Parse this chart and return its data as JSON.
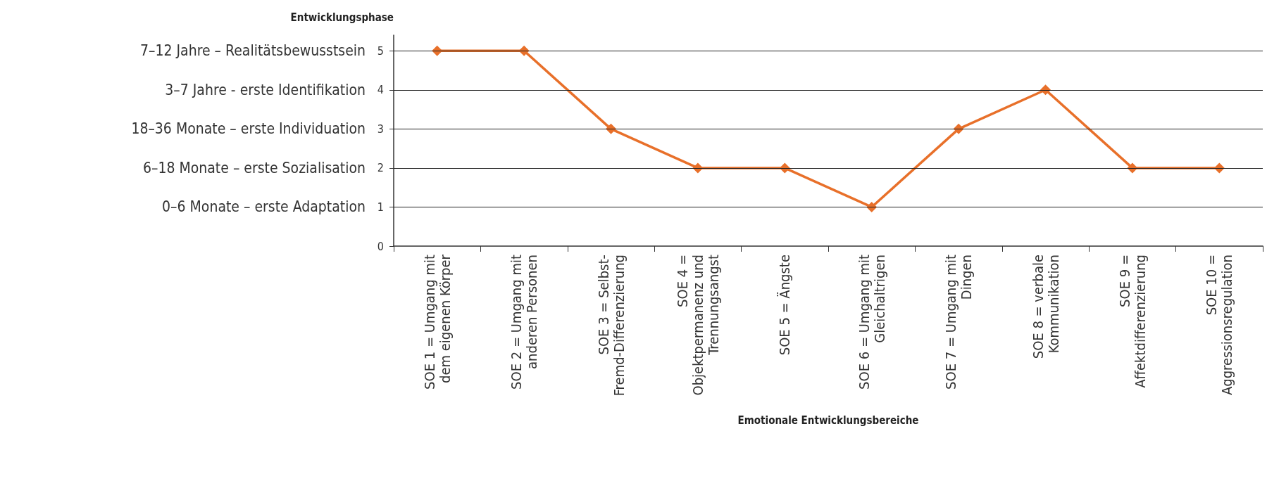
{
  "chart_data": {
    "type": "line",
    "ylabel": "Entwicklungsphase",
    "xlabel": "Emotionale Entwicklungsbereiche",
    "categories": [
      "SOE 1 = Umgang mit\ndem eigenen Körper",
      "SOE 2 = Umgang mit\nanderen Personen",
      "SOE 3 = Selbst-\nFremd-Differenzierung",
      "SOE 4 =\nObjektpermanenz und\nTrennungsangst",
      "SOE 5 = Ängste",
      "SOE 6 = Umgang mit\nGleichaltrigen",
      "SOE 7 = Umgang mit\nDingen",
      "SOE 8 = verbale\nKommunikation",
      "SOE 9 =\nAffektdifferenzierung",
      "SOE 10 =\nAggressionsregulation"
    ],
    "values": [
      5,
      5,
      3,
      2,
      2,
      1,
      3,
      4,
      2,
      2
    ],
    "color": "#e8702a",
    "marker": "diamond",
    "line_style": "solid",
    "ylim": [
      0,
      5.4
    ],
    "yticks": [
      0,
      1,
      2,
      3,
      4,
      5
    ],
    "ref_lines": [
      {
        "axis": "y",
        "value": 5,
        "label": "7–12 Jahre – Realitätsbewusstsein"
      },
      {
        "axis": "y",
        "value": 4,
        "label": "3–7 Jahre - erste Identifikation"
      },
      {
        "axis": "y",
        "value": 3,
        "label": "18–36 Monate – erste Individuation"
      },
      {
        "axis": "y",
        "value": 2,
        "label": "6–18 Monate – erste Sozialisation"
      },
      {
        "axis": "y",
        "value": 1,
        "label": "0–6 Monate – erste Adaptation"
      }
    ]
  }
}
